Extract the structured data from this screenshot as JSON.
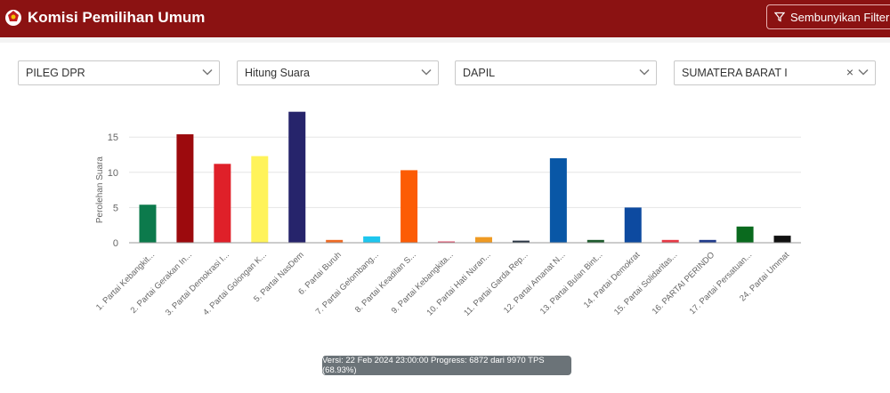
{
  "header": {
    "title": "Komisi Pemilihan Umum",
    "filter_button_label": "Sembunyikan Filter",
    "bg_color": "#8b1212"
  },
  "filters": [
    {
      "value": "PILEG DPR"
    },
    {
      "value": "Hitung Suara"
    },
    {
      "value": "DAPIL"
    },
    {
      "value": "SUMATERA BARAT I",
      "clearable": true
    }
  ],
  "chart_data": {
    "type": "bar",
    "ylabel": "Perolehan Suara",
    "ylim": [
      0,
      18
    ],
    "yticks": [
      0,
      5,
      10,
      15
    ],
    "grid": true,
    "categories": [
      "1. Partai Kebangkit...",
      "2. Partai Gerakan In...",
      "3. Partai Demokrasi I...",
      "4. Partai Golongan K...",
      "5. Partai NasDem",
      "6. Partai Buruh",
      "7. Partai Gelombang...",
      "8. Partai Keadilan S...",
      "9. Partai Kebangkita...",
      "10. Partai Hati Nuran...",
      "11. Partai Garda Rep...",
      "12. Partai Amanat N...",
      "13. Partai Bulan Bint...",
      "14. Partai Demokrat",
      "15. Partai Solidaritas...",
      "16. PARTAI PERINDO",
      "17. Partai Persatuan...",
      "24. Partai Ummat"
    ],
    "values": [
      5.4,
      15.4,
      11.2,
      12.3,
      18.6,
      0.4,
      0.9,
      10.3,
      0.1,
      0.8,
      0.3,
      12.0,
      0.4,
      5.0,
      0.4,
      0.4,
      2.3,
      1.0
    ],
    "colors": [
      "#0c7a4c",
      "#9c0a0d",
      "#df2029",
      "#fff35a",
      "#26246b",
      "#f06b25",
      "#1ec6ee",
      "#fc5c05",
      "#e04e6b",
      "#ef9a23",
      "#2b3645",
      "#0957a6",
      "#1f5c2e",
      "#0d4aa0",
      "#e83a47",
      "#213d8d",
      "#0a6a1e",
      "#111111"
    ]
  },
  "status_text": "Versi: 22 Feb 2024 23:00:00 Progress: 6872 dari 9970 TPS (68.93%)"
}
